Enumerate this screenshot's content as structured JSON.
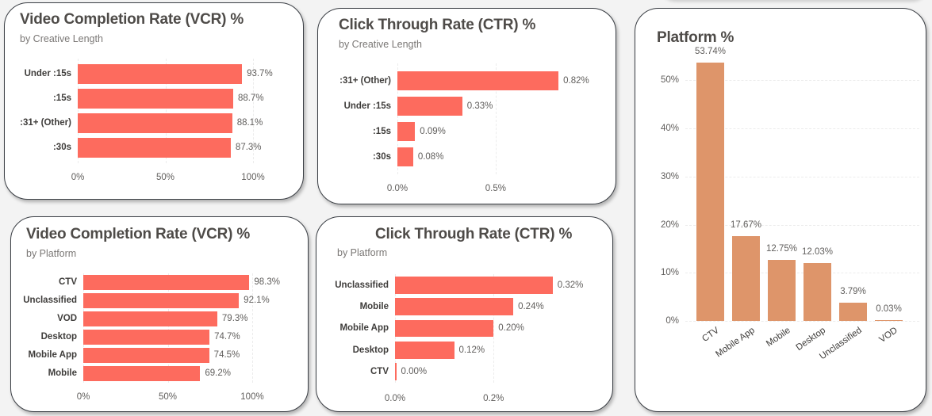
{
  "dashboard": {
    "cards": [
      {
        "title": "Video Completion Rate (VCR) %",
        "subtitle": "by Creative Length"
      },
      {
        "title": "Click Through Rate (CTR) %",
        "subtitle": "by Creative Length"
      },
      {
        "title": "Video Completion Rate (VCR) %",
        "subtitle": "by Platform"
      },
      {
        "title": "Click Through Rate (CTR) %",
        "subtitle": "by Platform"
      },
      {
        "title": "Platform %",
        "subtitle": ""
      }
    ]
  },
  "colors": {
    "bar_primary": "#fd6b5e",
    "bar_platform": "#de956a",
    "card_border": "#3b3f45",
    "title_text": "#4e4b48",
    "background": "#f3f3f3"
  },
  "chart_data": [
    {
      "type": "bar",
      "orientation": "horizontal",
      "title": "Video Completion Rate (VCR) %",
      "subtitle": "by Creative Length",
      "categories": [
        "Under :15s",
        ":15s",
        ":31+ (Other)",
        ":30s"
      ],
      "values": [
        93.7,
        88.7,
        88.1,
        87.3
      ],
      "value_labels": [
        "93.7%",
        "88.7%",
        "88.1%",
        "87.3%"
      ],
      "xticks": [
        "0%",
        "50%",
        "100%"
      ],
      "xlim": [
        0,
        100
      ],
      "grid": true
    },
    {
      "type": "bar",
      "orientation": "horizontal",
      "title": "Click Through Rate (CTR) %",
      "subtitle": "by Creative Length",
      "categories": [
        ":31+ (Other)",
        "Under :15s",
        ":15s",
        ":30s"
      ],
      "values": [
        0.82,
        0.33,
        0.09,
        0.08
      ],
      "value_labels": [
        "0.82%",
        "0.33%",
        "0.09%",
        "0.08%"
      ],
      "xticks": [
        "0.0%",
        "0.5%"
      ],
      "xlim": [
        0,
        0.9
      ],
      "grid": true
    },
    {
      "type": "bar",
      "orientation": "horizontal",
      "title": "Video Completion Rate (VCR) %",
      "subtitle": "by Platform",
      "categories": [
        "CTV",
        "Unclassified",
        "VOD",
        "Desktop",
        "Mobile App",
        "Mobile"
      ],
      "values": [
        98.3,
        92.1,
        79.3,
        74.7,
        74.5,
        69.2
      ],
      "value_labels": [
        "98.3%",
        "92.1%",
        "79.3%",
        "74.7%",
        "74.5%",
        "69.2%"
      ],
      "xticks": [
        "0%",
        "50%",
        "100%"
      ],
      "xlim": [
        0,
        100
      ],
      "grid": true
    },
    {
      "type": "bar",
      "orientation": "horizontal",
      "title": "Click Through Rate (CTR) %",
      "subtitle": "by Platform",
      "categories": [
        "Unclassified",
        "Mobile",
        "Mobile App",
        "Desktop",
        "CTV"
      ],
      "values": [
        0.32,
        0.24,
        0.2,
        0.12,
        0.0
      ],
      "value_labels": [
        "0.32%",
        "0.24%",
        "0.20%",
        "0.12%",
        "0.00%"
      ],
      "xticks": [
        "0.0%",
        "0.2%"
      ],
      "xlim": [
        0,
        0.33
      ],
      "grid": true
    },
    {
      "type": "bar",
      "orientation": "vertical",
      "title": "Platform %",
      "categories": [
        "CTV",
        "Mobile App",
        "Mobile",
        "Desktop",
        "Unclassified",
        "VOD"
      ],
      "values": [
        53.74,
        17.67,
        12.75,
        12.03,
        3.79,
        0.03
      ],
      "value_labels": [
        "53.74%",
        "17.67%",
        "12.75%",
        "12.03%",
        "3.79%",
        "0.03%"
      ],
      "yticks": [
        "0%",
        "10%",
        "20%",
        "30%",
        "40%",
        "50%"
      ],
      "ylim": [
        0,
        55
      ],
      "grid": true
    }
  ]
}
